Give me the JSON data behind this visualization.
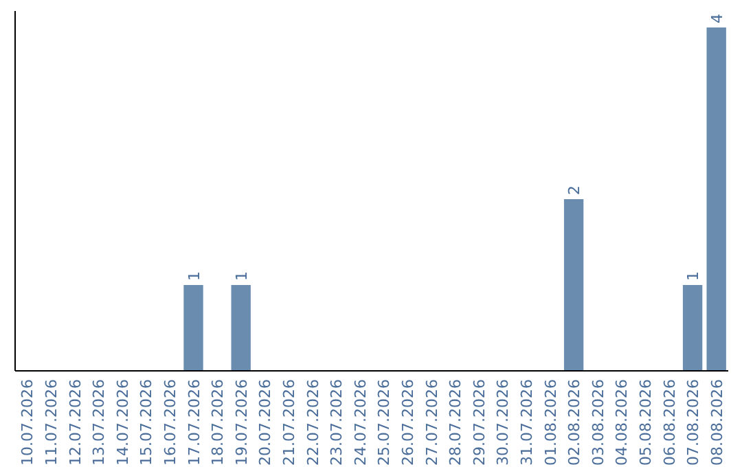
{
  "chart_data": {
    "type": "bar",
    "categories": [
      "10.07.2026",
      "11.07.2026",
      "12.07.2026",
      "13.07.2026",
      "14.07.2026",
      "15.07.2026",
      "16.07.2026",
      "17.07.2026",
      "18.07.2026",
      "19.07.2026",
      "20.07.2026",
      "21.07.2026",
      "22.07.2026",
      "23.07.2026",
      "24.07.2026",
      "25.07.2026",
      "26.07.2026",
      "27.07.2026",
      "28.07.2026",
      "29.07.2026",
      "30.07.2026",
      "31.07.2026",
      "01.08.2026",
      "02.08.2026",
      "03.08.2026",
      "04.08.2026",
      "05.08.2026",
      "06.08.2026",
      "07.08.2026",
      "08.08.2026"
    ],
    "values": [
      0,
      0,
      0,
      0,
      0,
      0,
      0,
      1,
      0,
      1,
      0,
      0,
      0,
      0,
      0,
      0,
      0,
      0,
      0,
      0,
      0,
      0,
      0,
      2,
      0,
      0,
      0,
      0,
      1,
      4
    ],
    "value_labels": [
      null,
      null,
      null,
      null,
      null,
      null,
      null,
      "1",
      null,
      "1",
      null,
      null,
      null,
      null,
      null,
      null,
      null,
      null,
      null,
      null,
      null,
      null,
      null,
      "2",
      null,
      null,
      null,
      null,
      "1",
      "4"
    ],
    "color": "#6a8caf"
  }
}
